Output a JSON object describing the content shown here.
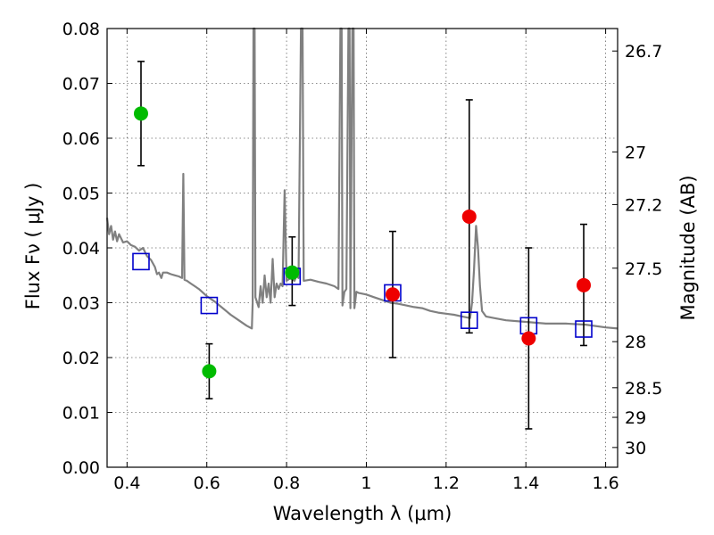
{
  "chart_data": {
    "type": "scatter",
    "title": "",
    "xlabel": "Wavelength  λ (μm)",
    "ylabel": "Flux  Fν  ( μJy )",
    "y2label": "Magnitude (AB)",
    "xlim": [
      0.35,
      1.63
    ],
    "ylim": [
      0.0,
      0.08
    ],
    "grid": true,
    "x_ticks": [
      0.4,
      0.6,
      0.8,
      1.0,
      1.2,
      1.4,
      1.6
    ],
    "x_tick_labels": [
      "0.4",
      "0.6",
      "0.8",
      "1",
      "1.2",
      "1.4",
      "1.6"
    ],
    "y_ticks": [
      0.0,
      0.01,
      0.02,
      0.03,
      0.04,
      0.05,
      0.06,
      0.07,
      0.08
    ],
    "y_tick_labels": [
      "0.00",
      "0.01",
      "0.02",
      "0.03",
      "0.04",
      "0.05",
      "0.06",
      "0.07",
      "0.08"
    ],
    "y2_ticks": [
      {
        "label": "26.7",
        "flux": 0.0759
      },
      {
        "label": "27",
        "flux": 0.0575
      },
      {
        "label": "27.2",
        "flux": 0.0479
      },
      {
        "label": "27.5",
        "flux": 0.0363
      },
      {
        "label": "28",
        "flux": 0.0229
      },
      {
        "label": "28.5",
        "flux": 0.0145
      },
      {
        "label": "29",
        "flux": 0.0091
      },
      {
        "label": "30",
        "flux": 0.0036
      }
    ],
    "series": [
      {
        "marker": "circle",
        "color": "#00bb00",
        "points": [
          {
            "x": 0.435,
            "y": 0.0645,
            "yerr_low": 0.055,
            "yerr_high": 0.074
          },
          {
            "x": 0.606,
            "y": 0.0175,
            "yerr_low": 0.0125,
            "yerr_high": 0.0225
          },
          {
            "x": 0.814,
            "y": 0.0355,
            "yerr_low": 0.0295,
            "yerr_high": 0.042
          }
        ]
      },
      {
        "marker": "circle",
        "color": "#ee0000",
        "points": [
          {
            "x": 1.066,
            "y": 0.0315,
            "yerr_low": 0.02,
            "yerr_high": 0.043
          },
          {
            "x": 1.258,
            "y": 0.0457,
            "yerr_low": 0.0245,
            "yerr_high": 0.067
          },
          {
            "x": 1.407,
            "y": 0.0235,
            "yerr_low": 0.007,
            "yerr_high": 0.04
          },
          {
            "x": 1.545,
            "y": 0.0332,
            "yerr_low": 0.0222,
            "yerr_high": 0.0443
          }
        ]
      },
      {
        "marker": "square",
        "color": "#0000cc",
        "points": [
          {
            "x": 0.435,
            "y": 0.0375
          },
          {
            "x": 0.606,
            "y": 0.0295
          },
          {
            "x": 0.814,
            "y": 0.0348
          },
          {
            "x": 1.066,
            "y": 0.0318
          },
          {
            "x": 1.258,
            "y": 0.0268
          },
          {
            "x": 1.407,
            "y": 0.0258
          },
          {
            "x": 1.545,
            "y": 0.0252
          }
        ]
      },
      {
        "marker": "line",
        "color": "#808080",
        "points": [
          {
            "x": 0.35,
            "y": 0.0455
          },
          {
            "x": 0.355,
            "y": 0.0425
          },
          {
            "x": 0.36,
            "y": 0.044
          },
          {
            "x": 0.365,
            "y": 0.0415
          },
          {
            "x": 0.37,
            "y": 0.043
          },
          {
            "x": 0.375,
            "y": 0.0412
          },
          {
            "x": 0.38,
            "y": 0.0425
          },
          {
            "x": 0.39,
            "y": 0.041
          },
          {
            "x": 0.4,
            "y": 0.0412
          },
          {
            "x": 0.41,
            "y": 0.0405
          },
          {
            "x": 0.42,
            "y": 0.0402
          },
          {
            "x": 0.43,
            "y": 0.0395
          },
          {
            "x": 0.44,
            "y": 0.04
          },
          {
            "x": 0.45,
            "y": 0.0385
          },
          {
            "x": 0.46,
            "y": 0.0378
          },
          {
            "x": 0.47,
            "y": 0.0365
          },
          {
            "x": 0.475,
            "y": 0.0352
          },
          {
            "x": 0.48,
            "y": 0.0355
          },
          {
            "x": 0.486,
            "y": 0.0345
          },
          {
            "x": 0.49,
            "y": 0.0355
          },
          {
            "x": 0.5,
            "y": 0.0355
          },
          {
            "x": 0.51,
            "y": 0.0352
          },
          {
            "x": 0.52,
            "y": 0.035
          },
          {
            "x": 0.53,
            "y": 0.0348
          },
          {
            "x": 0.538,
            "y": 0.0345
          },
          {
            "x": 0.541,
            "y": 0.0535
          },
          {
            "x": 0.544,
            "y": 0.0342
          },
          {
            "x": 0.55,
            "y": 0.034
          },
          {
            "x": 0.56,
            "y": 0.0335
          },
          {
            "x": 0.57,
            "y": 0.033
          },
          {
            "x": 0.58,
            "y": 0.0325
          },
          {
            "x": 0.6,
            "y": 0.0312
          },
          {
            "x": 0.62,
            "y": 0.0302
          },
          {
            "x": 0.64,
            "y": 0.029
          },
          {
            "x": 0.66,
            "y": 0.0278
          },
          {
            "x": 0.68,
            "y": 0.0268
          },
          {
            "x": 0.7,
            "y": 0.0258
          },
          {
            "x": 0.713,
            "y": 0.0253
          },
          {
            "x": 0.715,
            "y": 0.03
          },
          {
            "x": 0.717,
            "y": 0.08
          },
          {
            "x": 0.72,
            "y": 0.08
          },
          {
            "x": 0.722,
            "y": 0.031
          },
          {
            "x": 0.73,
            "y": 0.0292
          },
          {
            "x": 0.735,
            "y": 0.033
          },
          {
            "x": 0.74,
            "y": 0.03
          },
          {
            "x": 0.745,
            "y": 0.035
          },
          {
            "x": 0.75,
            "y": 0.031
          },
          {
            "x": 0.755,
            "y": 0.0335
          },
          {
            "x": 0.76,
            "y": 0.03
          },
          {
            "x": 0.765,
            "y": 0.038
          },
          {
            "x": 0.77,
            "y": 0.031
          },
          {
            "x": 0.775,
            "y": 0.0335
          },
          {
            "x": 0.78,
            "y": 0.0325
          },
          {
            "x": 0.785,
            "y": 0.0335
          },
          {
            "x": 0.79,
            "y": 0.033
          },
          {
            "x": 0.795,
            "y": 0.0505
          },
          {
            "x": 0.8,
            "y": 0.034
          },
          {
            "x": 0.81,
            "y": 0.0345
          },
          {
            "x": 0.82,
            "y": 0.034
          },
          {
            "x": 0.825,
            "y": 0.035
          },
          {
            "x": 0.83,
            "y": 0.0345
          },
          {
            "x": 0.836,
            "y": 0.08
          },
          {
            "x": 0.84,
            "y": 0.08
          },
          {
            "x": 0.843,
            "y": 0.034
          },
          {
            "x": 0.86,
            "y": 0.0342
          },
          {
            "x": 0.88,
            "y": 0.0338
          },
          {
            "x": 0.9,
            "y": 0.0335
          },
          {
            "x": 0.92,
            "y": 0.033
          },
          {
            "x": 0.93,
            "y": 0.0325
          },
          {
            "x": 0.935,
            "y": 0.08
          },
          {
            "x": 0.938,
            "y": 0.08
          },
          {
            "x": 0.94,
            "y": 0.0295
          },
          {
            "x": 0.945,
            "y": 0.032
          },
          {
            "x": 0.95,
            "y": 0.0325
          },
          {
            "x": 0.955,
            "y": 0.08
          },
          {
            "x": 0.958,
            "y": 0.08
          },
          {
            "x": 0.96,
            "y": 0.029
          },
          {
            "x": 0.965,
            "y": 0.08
          },
          {
            "x": 0.968,
            "y": 0.08
          },
          {
            "x": 0.97,
            "y": 0.029
          },
          {
            "x": 0.975,
            "y": 0.032
          },
          {
            "x": 0.98,
            "y": 0.0318
          },
          {
            "x": 1.0,
            "y": 0.0315
          },
          {
            "x": 1.02,
            "y": 0.031
          },
          {
            "x": 1.04,
            "y": 0.0305
          },
          {
            "x": 1.06,
            "y": 0.03
          },
          {
            "x": 1.08,
            "y": 0.0298
          },
          {
            "x": 1.1,
            "y": 0.0295
          },
          {
            "x": 1.12,
            "y": 0.0292
          },
          {
            "x": 1.14,
            "y": 0.029
          },
          {
            "x": 1.16,
            "y": 0.0285
          },
          {
            "x": 1.18,
            "y": 0.0282
          },
          {
            "x": 1.2,
            "y": 0.028
          },
          {
            "x": 1.22,
            "y": 0.0278
          },
          {
            "x": 1.24,
            "y": 0.0275
          },
          {
            "x": 1.26,
            "y": 0.0272
          },
          {
            "x": 1.265,
            "y": 0.03
          },
          {
            "x": 1.27,
            "y": 0.036
          },
          {
            "x": 1.275,
            "y": 0.044
          },
          {
            "x": 1.28,
            "y": 0.04
          },
          {
            "x": 1.285,
            "y": 0.033
          },
          {
            "x": 1.29,
            "y": 0.0285
          },
          {
            "x": 1.3,
            "y": 0.0275
          },
          {
            "x": 1.32,
            "y": 0.0272
          },
          {
            "x": 1.35,
            "y": 0.0268
          },
          {
            "x": 1.4,
            "y": 0.0265
          },
          {
            "x": 1.45,
            "y": 0.0262
          },
          {
            "x": 1.5,
            "y": 0.0262
          },
          {
            "x": 1.55,
            "y": 0.026
          },
          {
            "x": 1.6,
            "y": 0.0255
          },
          {
            "x": 1.63,
            "y": 0.0253
          }
        ]
      }
    ]
  }
}
